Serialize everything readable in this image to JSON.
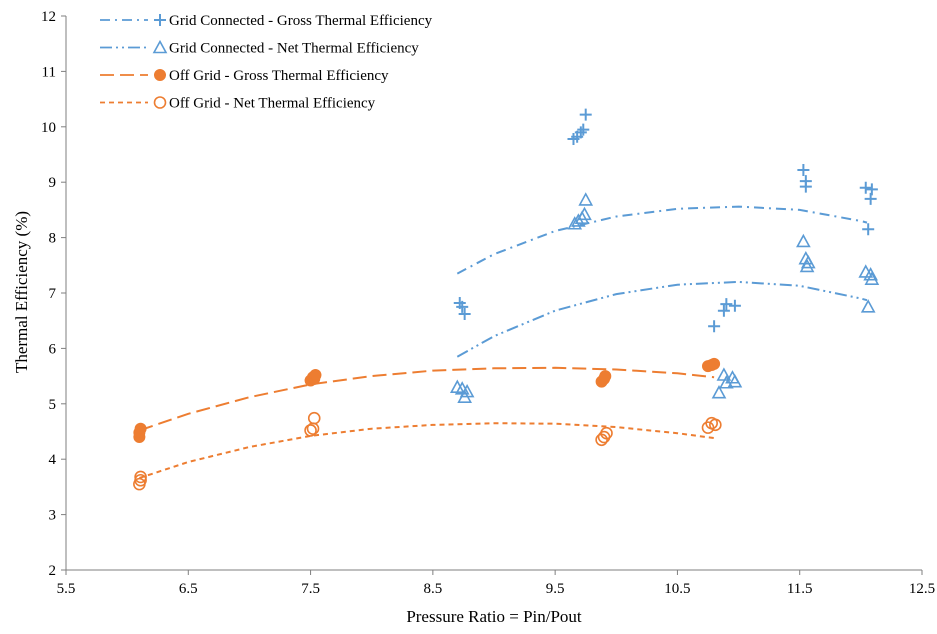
{
  "chart_data": {
    "type": "scatter",
    "title": "",
    "xlabel": "Pressure Ratio = Pin/Pout",
    "ylabel": "Thermal Efficiency (%)",
    "xlim": [
      5.5,
      12.5
    ],
    "ylim": [
      2,
      12
    ],
    "x_ticks": [
      "5.5",
      "6.5",
      "7.5",
      "8.5",
      "9.5",
      "10.5",
      "11.5",
      "12.5"
    ],
    "y_ticks": [
      "2",
      "3",
      "4",
      "5",
      "6",
      "7",
      "8",
      "9",
      "10",
      "11",
      "12"
    ],
    "grid": false,
    "legend_position": "top-left",
    "series": [
      {
        "name": "Grid Connected - Gross Thermal Efficiency",
        "marker": "plus",
        "color": "#5b9bd5",
        "trend_style": "dash-dot",
        "points": [
          [
            8.72,
            6.82
          ],
          [
            8.74,
            6.75
          ],
          [
            8.76,
            6.62
          ],
          [
            9.65,
            9.78
          ],
          [
            9.68,
            9.82
          ],
          [
            9.71,
            9.9
          ],
          [
            9.73,
            9.95
          ],
          [
            9.75,
            10.22
          ],
          [
            10.8,
            6.4
          ],
          [
            10.88,
            6.68
          ],
          [
            10.9,
            6.8
          ],
          [
            10.97,
            6.77
          ],
          [
            11.53,
            9.22
          ],
          [
            11.55,
            9.02
          ],
          [
            11.55,
            8.92
          ],
          [
            12.04,
            8.9
          ],
          [
            12.06,
            8.15
          ],
          [
            12.08,
            8.7
          ],
          [
            12.09,
            8.87
          ]
        ],
        "trend": [
          [
            8.7,
            7.35
          ],
          [
            9.0,
            7.7
          ],
          [
            9.5,
            8.12
          ],
          [
            10.0,
            8.38
          ],
          [
            10.5,
            8.52
          ],
          [
            11.0,
            8.56
          ],
          [
            11.5,
            8.5
          ],
          [
            12.0,
            8.3
          ],
          [
            12.05,
            8.27
          ]
        ]
      },
      {
        "name": "Grid Connected - Net Thermal Efficiency",
        "marker": "triangle",
        "color": "#5b9bd5",
        "trend_style": "dash-dot-dot",
        "points": [
          [
            8.7,
            5.3
          ],
          [
            8.74,
            5.27
          ],
          [
            8.76,
            5.12
          ],
          [
            8.78,
            5.22
          ],
          [
            9.66,
            8.25
          ],
          [
            9.69,
            8.3
          ],
          [
            9.72,
            8.35
          ],
          [
            9.74,
            8.42
          ],
          [
            9.75,
            8.68
          ],
          [
            10.84,
            5.2
          ],
          [
            10.88,
            5.52
          ],
          [
            10.9,
            5.38
          ],
          [
            10.95,
            5.47
          ],
          [
            10.97,
            5.4
          ],
          [
            11.53,
            7.93
          ],
          [
            11.55,
            7.62
          ],
          [
            11.56,
            7.48
          ],
          [
            11.57,
            7.55
          ],
          [
            12.04,
            7.38
          ],
          [
            12.06,
            6.75
          ],
          [
            12.08,
            7.33
          ],
          [
            12.09,
            7.25
          ]
        ],
        "trend": [
          [
            8.7,
            5.85
          ],
          [
            9.0,
            6.22
          ],
          [
            9.5,
            6.68
          ],
          [
            10.0,
            6.98
          ],
          [
            10.5,
            7.15
          ],
          [
            11.0,
            7.2
          ],
          [
            11.5,
            7.13
          ],
          [
            12.0,
            6.9
          ],
          [
            12.05,
            6.87
          ]
        ]
      },
      {
        "name": "Off Grid - Gross Thermal Efficiency",
        "marker": "filled-circle",
        "color": "#ed7d31",
        "trend_style": "long-dash",
        "points": [
          [
            6.1,
            4.4
          ],
          [
            6.1,
            4.48
          ],
          [
            6.11,
            4.55
          ],
          [
            7.5,
            5.42
          ],
          [
            7.52,
            5.48
          ],
          [
            7.53,
            5.45
          ],
          [
            7.54,
            5.52
          ],
          [
            9.88,
            5.4
          ],
          [
            9.9,
            5.45
          ],
          [
            9.91,
            5.5
          ],
          [
            10.75,
            5.68
          ],
          [
            10.78,
            5.7
          ],
          [
            10.8,
            5.72
          ]
        ],
        "trend": [
          [
            6.1,
            4.52
          ],
          [
            6.5,
            4.82
          ],
          [
            7.0,
            5.12
          ],
          [
            7.5,
            5.35
          ],
          [
            8.0,
            5.5
          ],
          [
            8.5,
            5.6
          ],
          [
            9.0,
            5.64
          ],
          [
            9.5,
            5.65
          ],
          [
            10.0,
            5.62
          ],
          [
            10.5,
            5.55
          ],
          [
            10.8,
            5.48
          ]
        ]
      },
      {
        "name": "Off Grid - Net Thermal Efficiency",
        "marker": "open-circle",
        "color": "#ed7d31",
        "trend_style": "short-dash",
        "points": [
          [
            6.1,
            3.55
          ],
          [
            6.11,
            3.62
          ],
          [
            6.11,
            3.68
          ],
          [
            7.5,
            4.52
          ],
          [
            7.52,
            4.55
          ],
          [
            7.53,
            4.74
          ],
          [
            9.88,
            4.35
          ],
          [
            9.9,
            4.4
          ],
          [
            9.92,
            4.47
          ],
          [
            10.75,
            4.57
          ],
          [
            10.78,
            4.65
          ],
          [
            10.81,
            4.62
          ]
        ],
        "trend": [
          [
            6.1,
            3.66
          ],
          [
            6.5,
            3.95
          ],
          [
            7.0,
            4.22
          ],
          [
            7.5,
            4.42
          ],
          [
            8.0,
            4.55
          ],
          [
            8.5,
            4.62
          ],
          [
            9.0,
            4.65
          ],
          [
            9.5,
            4.64
          ],
          [
            10.0,
            4.58
          ],
          [
            10.5,
            4.47
          ],
          [
            10.8,
            4.38
          ]
        ]
      }
    ]
  }
}
